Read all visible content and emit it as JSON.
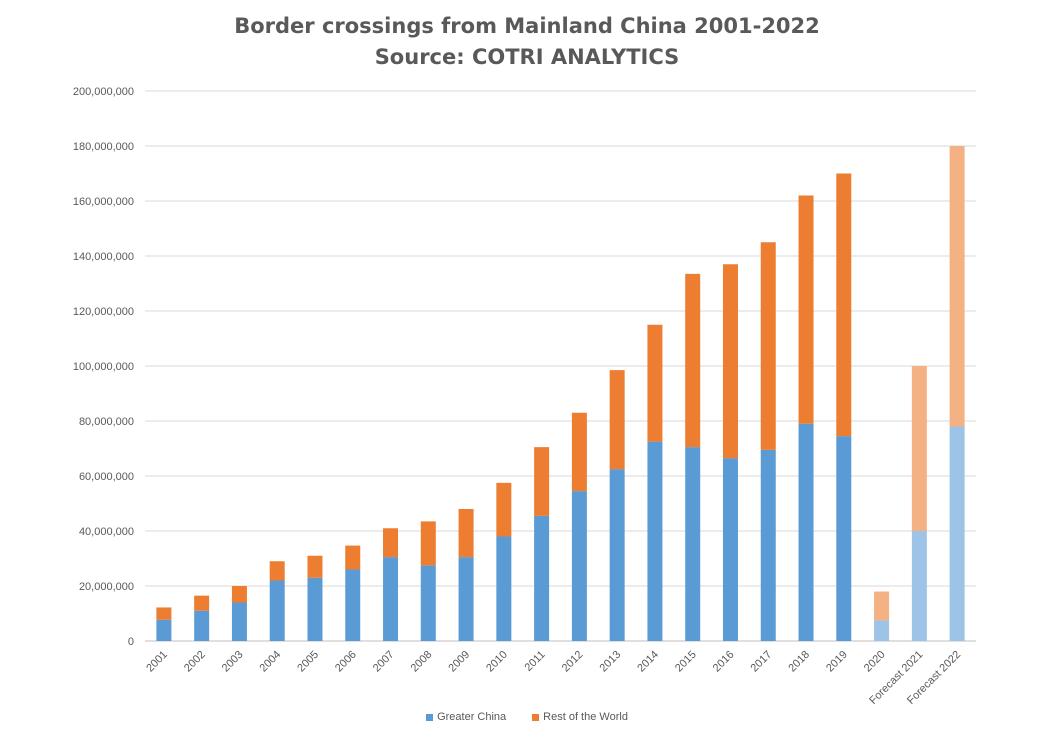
{
  "title": "Border crossings from Mainland China 2001-2022",
  "subtitle": "Source: COTRI ANALYTICS",
  "chart_data": {
    "type": "bar",
    "stacked": true,
    "title": "Border crossings from Mainland China 2001-2022",
    "subtitle": "Source: COTRI ANALYTICS",
    "categories": [
      "2001",
      "2002",
      "2003",
      "2004",
      "2005",
      "2006",
      "2007",
      "2008",
      "2009",
      "2010",
      "2011",
      "2012",
      "2013",
      "2014",
      "2015",
      "2016",
      "2017",
      "2018",
      "2019",
      "2020",
      "Forecast 2021",
      "Forecast 2022"
    ],
    "series": [
      {
        "name": "Greater China",
        "color": "#5B9BD5",
        "light_color": "#9DC3E6",
        "values": [
          7700000,
          11000000,
          14000000,
          22000000,
          23000000,
          26000000,
          30500000,
          27500000,
          30500000,
          38000000,
          45500000,
          54500000,
          62500000,
          72500000,
          70500000,
          66500000,
          69500000,
          79000000,
          74500000,
          7500000,
          40000000,
          78000000
        ]
      },
      {
        "name": "Rest of the World",
        "color": "#ED7D31",
        "light_color": "#F4B183",
        "values": [
          4500000,
          5500000,
          6000000,
          7000000,
          8000000,
          8700000,
          10500000,
          16000000,
          17500000,
          19500000,
          25000000,
          28500000,
          36000000,
          42500000,
          63000000,
          70500000,
          75500000,
          83000000,
          95500000,
          10500000,
          60000000,
          102000000
        ]
      }
    ],
    "light_from_index": 19,
    "yaxis": {
      "min": 0,
      "max": 200000000,
      "ticks": [
        "0",
        "20,000,000",
        "40,000,000",
        "60,000,000",
        "80,000,000",
        "100,000,000",
        "120,000,000",
        "140,000,000",
        "160,000,000",
        "180,000,000",
        "200,000,000"
      ]
    },
    "gridlines": true,
    "legend_position": "bottom"
  }
}
